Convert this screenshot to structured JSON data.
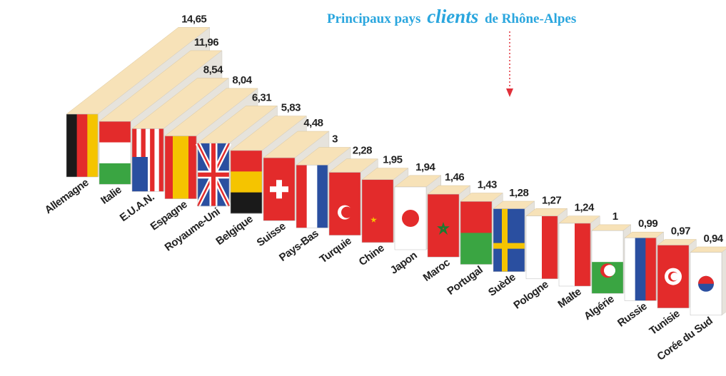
{
  "chart_data": {
    "type": "bar3d",
    "title_parts": [
      "Principaux pays",
      "clients",
      "de Rhône-Alpes"
    ],
    "categories": [
      "Allemagne",
      "Italie",
      "E.U.A.N.",
      "Espagne",
      "Royaume-Uni",
      "Belgique",
      "Suisse",
      "Pays-Bas",
      "Turquie",
      "Chine",
      "Japon",
      "Maroc",
      "Portugal",
      "Suède",
      "Pologne",
      "Malte",
      "Algérie",
      "Russie",
      "Tunisie",
      "Corée du Sud"
    ],
    "values": [
      14.65,
      11.96,
      8.54,
      8.04,
      6.31,
      5.83,
      4.48,
      3,
      2.28,
      1.95,
      1.94,
      1.46,
      1.43,
      1.28,
      1.27,
      1.24,
      1,
      0.99,
      0.97,
      0.94
    ],
    "value_labels": [
      "14,65",
      "11,96",
      "8,54",
      "8,04",
      "6,31",
      "5,83",
      "4,48",
      "3",
      "2,28",
      "1,95",
      "1,94",
      "1,46",
      "1,43",
      "1,28",
      "1,27",
      "1,24",
      "1",
      "0,99",
      "0,97",
      "0,94"
    ],
    "color": "#f7e2b8"
  }
}
